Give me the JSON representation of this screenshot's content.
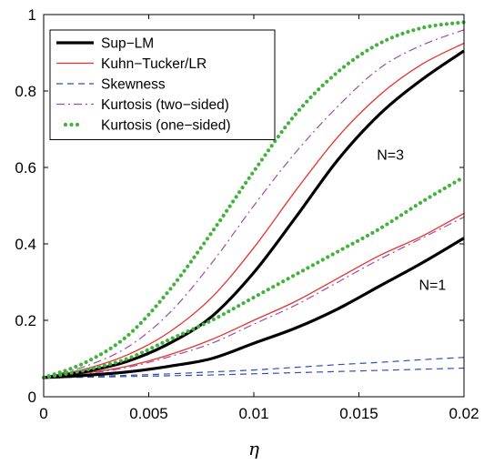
{
  "chart_data": {
    "type": "line",
    "title": "",
    "xlabel": "η",
    "ylabel": "",
    "xlim": [
      0,
      0.02
    ],
    "ylim": [
      0,
      1
    ],
    "grid": false,
    "legend_placement": "top-left",
    "x_ticks": [
      "0",
      "0.005",
      "0.01",
      "0.015",
      "0.02"
    ],
    "y_ticks": [
      "0",
      "0.2",
      "0.4",
      "0.6",
      "0.8",
      "1"
    ],
    "x": [
      0,
      0.002,
      0.004,
      0.006,
      0.008,
      0.01,
      0.012,
      0.014,
      0.016,
      0.018,
      0.02
    ],
    "series": [
      {
        "name": "Sup−LM",
        "style": "solid-thick",
        "color": "#000000",
        "group": "N=3",
        "values": [
          0.05,
          0.066,
          0.093,
          0.14,
          0.21,
          0.325,
          0.47,
          0.62,
          0.74,
          0.83,
          0.905
        ]
      },
      {
        "name": "Kuhn−Tucker/LR",
        "style": "solid",
        "color": "#e8322d",
        "group": "N=3",
        "values": [
          0.05,
          0.073,
          0.11,
          0.17,
          0.26,
          0.39,
          0.54,
          0.68,
          0.79,
          0.87,
          0.925
        ]
      },
      {
        "name": "Skewness",
        "style": "dashed",
        "color": "#2f4fb5",
        "group": "N=3",
        "values": [
          0.05,
          0.053,
          0.056,
          0.06,
          0.065,
          0.07,
          0.077,
          0.084,
          0.09,
          0.097,
          0.103
        ]
      },
      {
        "name": "Kurtosis (two−sided)",
        "style": "dashdot",
        "color": "#a14aa8",
        "group": "N=3",
        "values": [
          0.05,
          0.08,
          0.13,
          0.22,
          0.35,
          0.5,
          0.64,
          0.76,
          0.86,
          0.92,
          0.96
        ]
      },
      {
        "name": "Kurtosis (one−sided)",
        "style": "dotted",
        "color": "#3fb33a",
        "group": "N=3",
        "values": [
          0.05,
          0.09,
          0.16,
          0.28,
          0.43,
          0.59,
          0.74,
          0.85,
          0.925,
          0.965,
          0.98
        ]
      },
      {
        "name": "Sup−LM",
        "style": "solid-thick",
        "color": "#000000",
        "group": "N=1",
        "values": [
          0.05,
          0.056,
          0.065,
          0.08,
          0.1,
          0.14,
          0.18,
          0.23,
          0.29,
          0.35,
          0.415
        ]
      },
      {
        "name": "Kuhn−Tucker/LR",
        "style": "solid",
        "color": "#e8322d",
        "group": "N=1",
        "values": [
          0.05,
          0.062,
          0.08,
          0.11,
          0.15,
          0.2,
          0.25,
          0.31,
          0.37,
          0.42,
          0.48
        ]
      },
      {
        "name": "Skewness",
        "style": "dashed",
        "color": "#2f4fb5",
        "group": "N=1",
        "values": [
          0.05,
          0.051,
          0.053,
          0.055,
          0.057,
          0.06,
          0.063,
          0.066,
          0.069,
          0.072,
          0.075
        ]
      },
      {
        "name": "Kurtosis (two−sided)",
        "style": "dashdot",
        "color": "#a14aa8",
        "group": "N=1",
        "values": [
          0.05,
          0.06,
          0.077,
          0.105,
          0.14,
          0.19,
          0.24,
          0.3,
          0.36,
          0.415,
          0.47
        ]
      },
      {
        "name": "Kurtosis (one−sided)",
        "style": "dotted",
        "color": "#3fb33a",
        "group": "N=1",
        "values": [
          0.05,
          0.07,
          0.1,
          0.15,
          0.2,
          0.26,
          0.32,
          0.38,
          0.44,
          0.51,
          0.575
        ]
      }
    ],
    "legend": [
      {
        "label": "Sup−LM",
        "style": "solid-thick",
        "color": "#000000"
      },
      {
        "label": "Kuhn−Tucker/LR",
        "style": "solid",
        "color": "#e8322d"
      },
      {
        "label": "Skewness",
        "style": "dashed",
        "color": "#2f4fb5"
      },
      {
        "label": "Kurtosis (two−sided)",
        "style": "dashdot",
        "color": "#a14aa8"
      },
      {
        "label": "Kurtosis (one−sided)",
        "style": "dotted",
        "color": "#3fb33a"
      }
    ],
    "annotations": [
      {
        "text": "N=3",
        "x": 0.0165,
        "y": 0.62
      },
      {
        "text": "N=1",
        "x": 0.0185,
        "y": 0.28
      }
    ]
  }
}
